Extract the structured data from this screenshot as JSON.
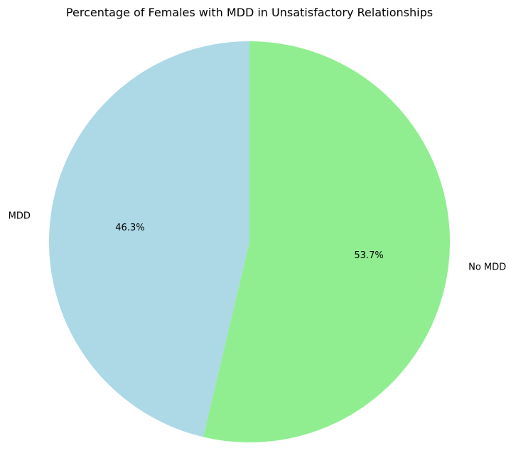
{
  "chart_data": {
    "type": "pie",
    "title": "Percentage of Females with MDD in Unsatisfactory Relationships",
    "categories": [
      "MDD",
      "No MDD"
    ],
    "values": [
      46.3,
      53.7
    ],
    "value_labels": [
      "46.3%",
      "53.7%"
    ],
    "colors": [
      "#add8e6",
      "#90ee90"
    ],
    "start_angle_deg": 90,
    "direction": "counterclockwise",
    "legend": "none"
  }
}
